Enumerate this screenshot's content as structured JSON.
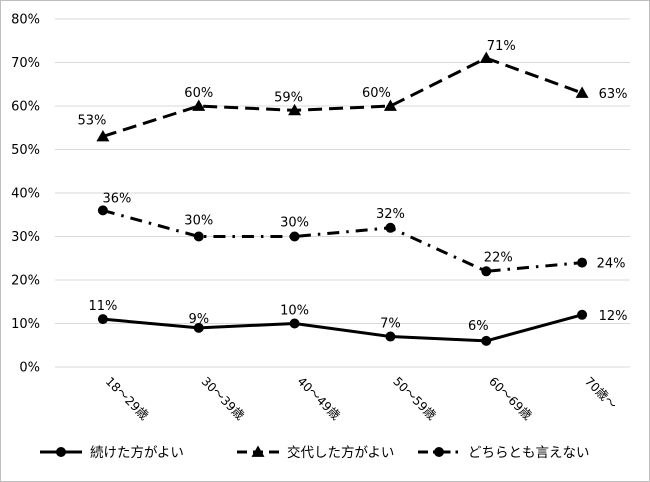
{
  "chart_data": {
    "type": "line",
    "categories": [
      "18～29歳",
      "30～39歳",
      "40～49歳",
      "50～59歳",
      "60～69歳",
      "70歳～"
    ],
    "ylim": [
      0,
      80
    ],
    "yticks": [
      "0%",
      "10%",
      "20%",
      "30%",
      "40%",
      "50%",
      "60%",
      "70%",
      "80%"
    ],
    "grid": true,
    "legend_position": "bottom",
    "series": [
      {
        "name": "続けた方がよい",
        "values": [
          11,
          9,
          10,
          7,
          6,
          12
        ],
        "labels": [
          "11%",
          "9%",
          "10%",
          "7%",
          "6%",
          "12%"
        ],
        "line_style": "solid",
        "marker": "circle",
        "color": "#000000"
      },
      {
        "name": "交代した方がよい",
        "values": [
          53,
          60,
          59,
          60,
          71,
          63
        ],
        "labels": [
          "53%",
          "60%",
          "59%",
          "60%",
          "71%",
          "63%"
        ],
        "line_style": "dash",
        "marker": "triangle",
        "color": "#000000"
      },
      {
        "name": "どちらとも言えない",
        "values": [
          36,
          30,
          30,
          32,
          22,
          24
        ],
        "labels": [
          "36%",
          "30%",
          "30%",
          "32%",
          "22%",
          "24%"
        ],
        "line_style": "dash-dot",
        "marker": "circle",
        "color": "#000000"
      }
    ]
  }
}
